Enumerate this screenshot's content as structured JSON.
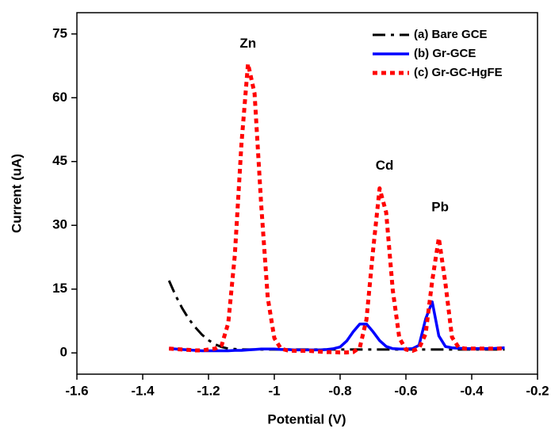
{
  "chart_data": {
    "type": "line",
    "xlabel": "Potential (V)",
    "ylabel": "Current (uA)",
    "xlim": [
      -1.6,
      -0.2
    ],
    "xticks": [
      -1.6,
      -1.4,
      -1.2,
      -1.0,
      -0.8,
      -0.6,
      -0.4,
      -0.2
    ],
    "ylim": [
      -5,
      80
    ],
    "yticks": [
      0,
      15,
      30,
      45,
      60,
      75
    ],
    "legend": "top-right",
    "x": [
      -1.32,
      -1.3,
      -1.28,
      -1.26,
      -1.24,
      -1.22,
      -1.2,
      -1.18,
      -1.16,
      -1.14,
      -1.12,
      -1.1,
      -1.08,
      -1.06,
      -1.04,
      -1.02,
      -1.0,
      -0.98,
      -0.96,
      -0.94,
      -0.92,
      -0.9,
      -0.88,
      -0.86,
      -0.84,
      -0.82,
      -0.8,
      -0.78,
      -0.76,
      -0.74,
      -0.72,
      -0.7,
      -0.68,
      -0.66,
      -0.64,
      -0.62,
      -0.6,
      -0.58,
      -0.56,
      -0.54,
      -0.52,
      -0.5,
      -0.48,
      -0.46,
      -0.44,
      -0.42,
      -0.4,
      -0.38,
      -0.36,
      -0.34,
      -0.32,
      -0.3
    ],
    "series": [
      {
        "name": "(a) Bare GCE",
        "color": "#000000",
        "dash": "dash-dot",
        "values": [
          17,
          13.5,
          10.5,
          8,
          6,
          4.3,
          3,
          2,
          1.4,
          1,
          0.9,
          0.8,
          0.8,
          0.8,
          0.8,
          0.8,
          0.8,
          0.8,
          0.8,
          0.8,
          0.8,
          0.8,
          0.8,
          0.8,
          0.8,
          0.8,
          0.8,
          0.8,
          0.8,
          0.8,
          0.8,
          0.8,
          0.8,
          0.8,
          0.8,
          0.8,
          0.8,
          0.8,
          0.8,
          0.8,
          0.8,
          0.8,
          0.8,
          0.8,
          0.8,
          0.8,
          0.8,
          0.8,
          0.8,
          0.8,
          0.8,
          0.8
        ]
      },
      {
        "name": "(b) Gr-GCE",
        "color": "#0000ff",
        "dash": "solid",
        "values": [
          1,
          0.9,
          0.8,
          0.7,
          0.6,
          0.5,
          0.5,
          0.5,
          0.5,
          0.5,
          0.6,
          0.6,
          0.7,
          0.8,
          0.9,
          0.9,
          0.9,
          0.8,
          0.8,
          0.7,
          0.7,
          0.7,
          0.7,
          0.7,
          0.8,
          1,
          1.4,
          2.8,
          5,
          6.8,
          6.8,
          5,
          2.9,
          1.5,
          1,
          0.9,
          0.9,
          1,
          1.8,
          8,
          12,
          4,
          1.5,
          1.2,
          1.1,
          1,
          1,
          1,
          1,
          1,
          1.1,
          1.2
        ]
      },
      {
        "name": "(c) Gr-GC-HgFE",
        "color": "#ff0000",
        "dash": "dot",
        "values": [
          1,
          0.9,
          0.8,
          0.7,
          0.6,
          0.6,
          0.8,
          1,
          1.8,
          7,
          23,
          49,
          68,
          61,
          35,
          13,
          3.5,
          1,
          0.6,
          0.5,
          0.5,
          0.5,
          0.4,
          0.3,
          0.2,
          0.2,
          0.1,
          0.1,
          0.2,
          1.3,
          7.8,
          24,
          38.7,
          33,
          14.8,
          3.5,
          0.8,
          0.5,
          1.1,
          4.5,
          17,
          27,
          16.4,
          3.7,
          1.3,
          1,
          1,
          1,
          1,
          1,
          1,
          1.1
        ]
      }
    ],
    "annotations": [
      {
        "text": "Zn",
        "x": -1.08,
        "y": 72.6
      },
      {
        "text": "Cd",
        "x": -0.665,
        "y": 43.9
      },
      {
        "text": "Pb",
        "x": -0.496,
        "y": 34.1
      }
    ]
  }
}
